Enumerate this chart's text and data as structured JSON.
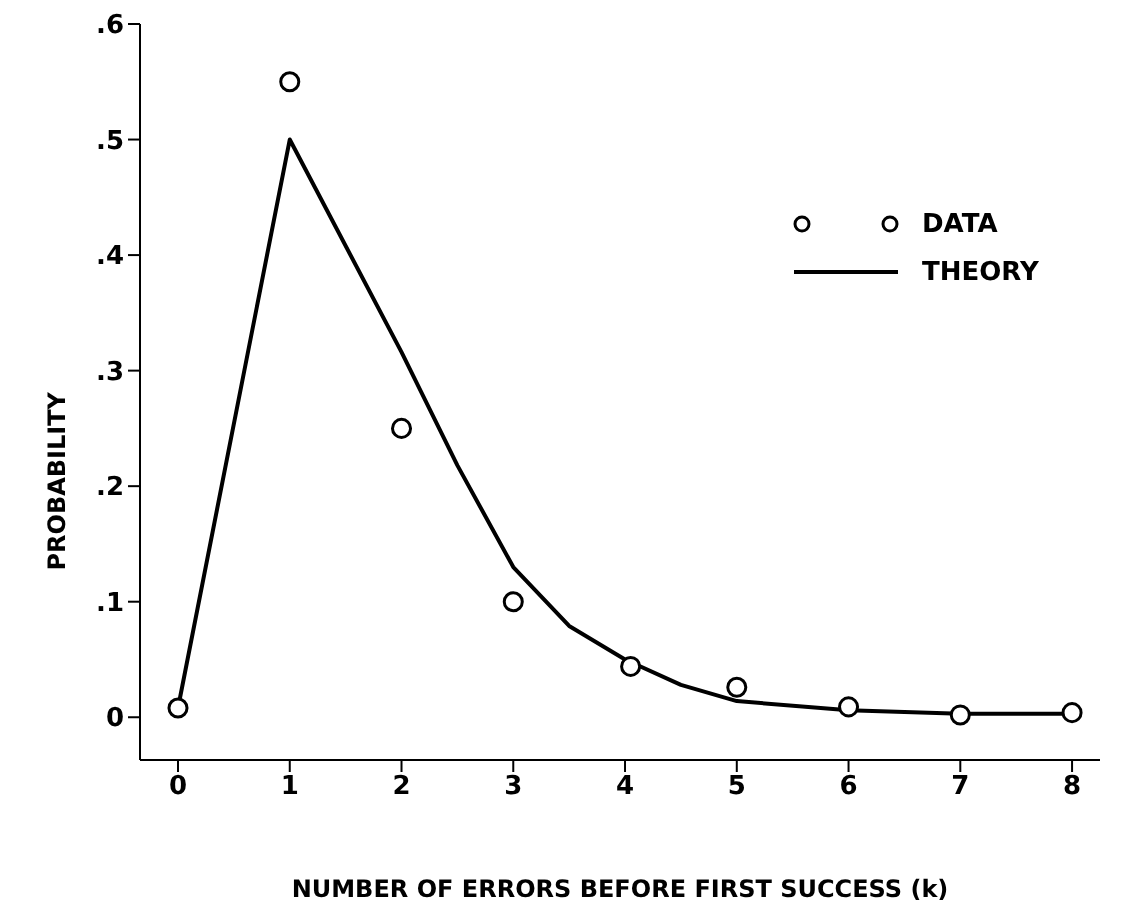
{
  "chart_data": {
    "type": "line",
    "xlabel": "NUMBER OF ERRORS BEFORE FIRST SUCCESS  (k)",
    "ylabel": "PROBABILITY",
    "xlim": [
      -0.34,
      8.25
    ],
    "xticks": [
      0,
      1,
      2,
      3,
      4,
      5,
      6,
      7,
      8
    ],
    "ylim": [
      -0.037,
      0.6
    ],
    "yticks": [
      {
        "value": 0,
        "label": "0"
      },
      {
        "value": 0.1,
        "label": ".1"
      },
      {
        "value": 0.2,
        "label": ".2"
      },
      {
        "value": 0.3,
        "label": ".3"
      },
      {
        "value": 0.4,
        "label": ".4"
      },
      {
        "value": 0.5,
        "label": ".5"
      },
      {
        "value": 0.6,
        "label": ".6"
      }
    ],
    "grid": false,
    "legend": "top right",
    "series": [
      {
        "name": "DATA",
        "type": "scatter",
        "marker": "circle",
        "color": "#000000",
        "x": [
          0,
          1,
          2,
          3,
          4.05,
          5,
          6,
          7,
          8
        ],
        "values": [
          0.008,
          0.55,
          0.25,
          0.1,
          0.044,
          0.026,
          0.009,
          0.002,
          0.004
        ]
      },
      {
        "name": "THEORY",
        "type": "line",
        "marker": "none",
        "line_style": "solid",
        "color": "#000000",
        "x": [
          0,
          1,
          2,
          2.5,
          3,
          3.5,
          4,
          4.5,
          5,
          6,
          7,
          8
        ],
        "values": [
          0.008,
          0.5,
          0.316,
          0.218,
          0.13,
          0.079,
          0.05,
          0.028,
          0.014,
          0.006,
          0.003,
          0.003
        ]
      }
    ]
  }
}
